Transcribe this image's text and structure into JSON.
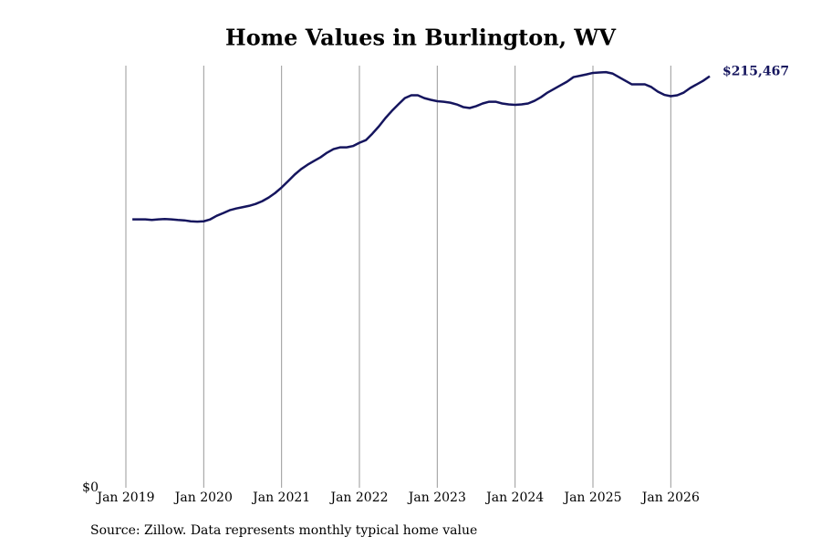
{
  "chart_data": {
    "type": "line",
    "title": "Home Values in Burlington, WV",
    "source": "Source: Zillow. Data represents monthly typical home value",
    "x": [
      "2019-02",
      "2019-03",
      "2019-04",
      "2019-05",
      "2019-06",
      "2019-07",
      "2019-08",
      "2019-09",
      "2019-10",
      "2019-11",
      "2019-12",
      "2020-01",
      "2020-02",
      "2020-03",
      "2020-04",
      "2020-05",
      "2020-06",
      "2020-07",
      "2020-08",
      "2020-09",
      "2020-10",
      "2020-11",
      "2020-12",
      "2021-01",
      "2021-02",
      "2021-03",
      "2021-04",
      "2021-05",
      "2021-06",
      "2021-07",
      "2021-08",
      "2021-09",
      "2021-10",
      "2021-11",
      "2021-12",
      "2022-01",
      "2022-02",
      "2022-03",
      "2022-04",
      "2022-05",
      "2022-06",
      "2022-07",
      "2022-08",
      "2022-09",
      "2022-10",
      "2022-11",
      "2022-12",
      "2023-01",
      "2023-02",
      "2023-03",
      "2023-04",
      "2023-05",
      "2023-06",
      "2023-07",
      "2023-08",
      "2023-09",
      "2023-10",
      "2023-11",
      "2023-12",
      "2024-01",
      "2024-02",
      "2024-03",
      "2024-04",
      "2024-05",
      "2024-06",
      "2024-07",
      "2024-08",
      "2024-09",
      "2024-10",
      "2024-11",
      "2024-12",
      "2025-01",
      "2025-02",
      "2025-03",
      "2025-04",
      "2025-05",
      "2025-06",
      "2025-07",
      "2025-08",
      "2025-09",
      "2025-10",
      "2025-11",
      "2025-12",
      "2026-01",
      "2026-02",
      "2026-03",
      "2026-04",
      "2026-05",
      "2026-06",
      "2026-07"
    ],
    "series": [
      {
        "color": "#15155e",
        "values": [
          140500,
          140500,
          140500,
          140200,
          140500,
          140700,
          140500,
          140200,
          140000,
          139500,
          139300,
          139500,
          140500,
          142400,
          143800,
          145300,
          146200,
          146900,
          147600,
          148600,
          150000,
          151900,
          154300,
          157200,
          160500,
          163900,
          166800,
          169100,
          171100,
          173000,
          175400,
          177300,
          178200,
          178200,
          178900,
          180600,
          182000,
          185400,
          189200,
          193500,
          197300,
          200700,
          204000,
          205500,
          205500,
          204000,
          203100,
          202400,
          202100,
          201600,
          200700,
          199300,
          198800,
          199800,
          201200,
          202100,
          202100,
          201200,
          200700,
          200500,
          200700,
          201200,
          202600,
          204500,
          206900,
          208800,
          210700,
          212600,
          215000,
          215700,
          216400,
          217200,
          217400,
          217600,
          216900,
          215000,
          213100,
          211200,
          211200,
          211200,
          209800,
          207400,
          205700,
          205000,
          205500,
          206900,
          209300,
          211200,
          213100,
          215467
        ],
        "value_labels": [
          null,
          null,
          null,
          null,
          null,
          null,
          null,
          null,
          null,
          null,
          null,
          null,
          null,
          null,
          null,
          null,
          null,
          null,
          null,
          null,
          null,
          null,
          null,
          null,
          null,
          null,
          null,
          null,
          null,
          null,
          null,
          null,
          null,
          null,
          null,
          null,
          null,
          null,
          null,
          null,
          null,
          null,
          null,
          null,
          null,
          null,
          null,
          null,
          null,
          null,
          null,
          null,
          null,
          null,
          null,
          null,
          null,
          null,
          null,
          null,
          null,
          null,
          null,
          null,
          null,
          null,
          null,
          null,
          null,
          null,
          null,
          null,
          null,
          null,
          null,
          null,
          null,
          null,
          null,
          null,
          null,
          null,
          null,
          null,
          null,
          null,
          null,
          null,
          null,
          "$215,467"
        ]
      }
    ],
    "xlim": [
      "2019-01",
      "2026-07"
    ],
    "xticks": [
      {
        "value": "2019-01",
        "label": "Jan 2019"
      },
      {
        "value": "2020-01",
        "label": "Jan 2020"
      },
      {
        "value": "2021-01",
        "label": "Jan 2021"
      },
      {
        "value": "2022-01",
        "label": "Jan 2022"
      },
      {
        "value": "2023-01",
        "label": "Jan 2023"
      },
      {
        "value": "2024-01",
        "label": "Jan 2024"
      },
      {
        "value": "2025-01",
        "label": "Jan 2025"
      },
      {
        "value": "2026-01",
        "label": "Jan 2026"
      }
    ],
    "ylim": [
      0,
      221000
    ],
    "yticks": [
      {
        "value": 0,
        "label": "$0"
      }
    ],
    "grid": true
  }
}
